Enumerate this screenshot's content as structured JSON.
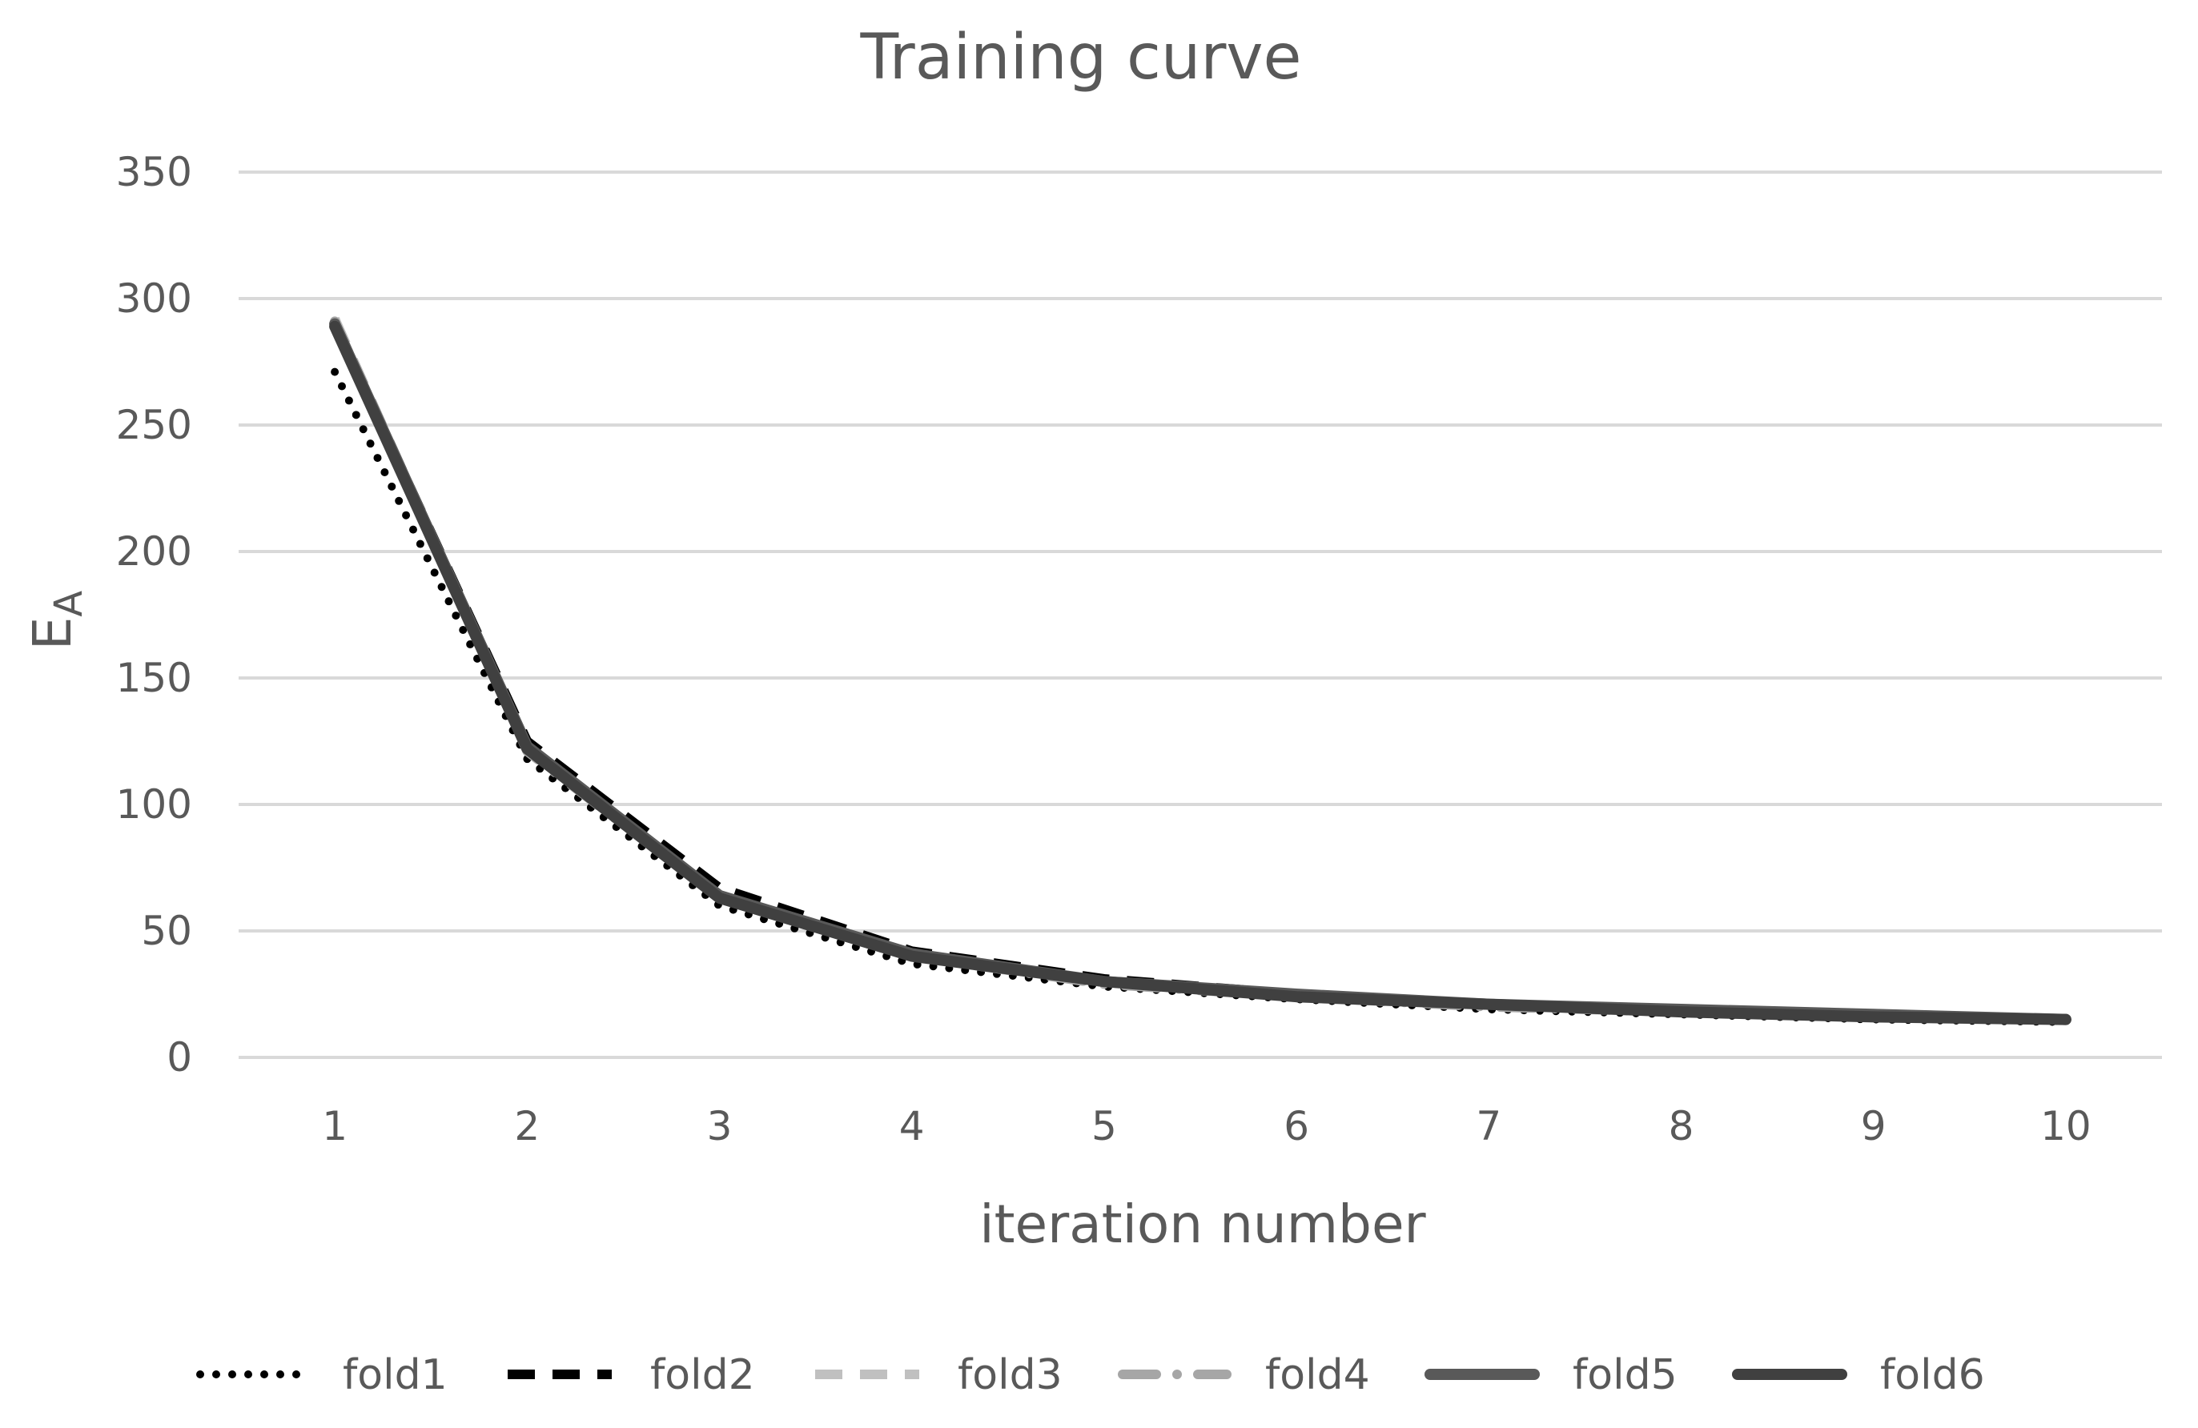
{
  "chart_data": {
    "type": "line",
    "title": "Training curve",
    "xlabel": "iteration number",
    "ylabel": "E",
    "ylabel_sub": "A",
    "x": [
      1,
      2,
      3,
      4,
      5,
      6,
      7,
      8,
      9,
      10
    ],
    "ylim": [
      0,
      350
    ],
    "yticks": [
      0,
      50,
      100,
      150,
      200,
      250,
      300,
      350
    ],
    "xtick_labels": [
      "1",
      "2",
      "3",
      "4",
      "5",
      "6",
      "7",
      "8",
      "9",
      "10"
    ],
    "ytick_labels": [
      "0",
      "50",
      "100",
      "150",
      "200",
      "250",
      "300",
      "350"
    ],
    "grid": true,
    "legend_position": "bottom",
    "series": [
      {
        "name": "fold1",
        "color": "#000000",
        "style": "dotted",
        "values": [
          271,
          118,
          60,
          37,
          28,
          23,
          19,
          17,
          15,
          14
        ]
      },
      {
        "name": "fold2",
        "color": "#000000",
        "style": "dashed",
        "values": [
          290,
          125,
          67,
          42,
          31,
          25,
          21,
          19,
          16,
          15
        ]
      },
      {
        "name": "fold3",
        "color": "#c0c0c0",
        "style": "dashed",
        "values": [
          292,
          122,
          64,
          41,
          30,
          25,
          21,
          19,
          17,
          15
        ]
      },
      {
        "name": "fold4",
        "color": "#a6a6a6",
        "style": "dashdot",
        "values": [
          291,
          121,
          63,
          40,
          29,
          24,
          20,
          18,
          16,
          15
        ]
      },
      {
        "name": "fold5",
        "color": "#595959",
        "style": "solid",
        "values": [
          290,
          123,
          64,
          41,
          30,
          25,
          21,
          19,
          17,
          15
        ]
      },
      {
        "name": "fold6",
        "color": "#404040",
        "style": "solid",
        "values": [
          289,
          122,
          63,
          40,
          30,
          24,
          21,
          18,
          16,
          15
        ]
      }
    ]
  }
}
